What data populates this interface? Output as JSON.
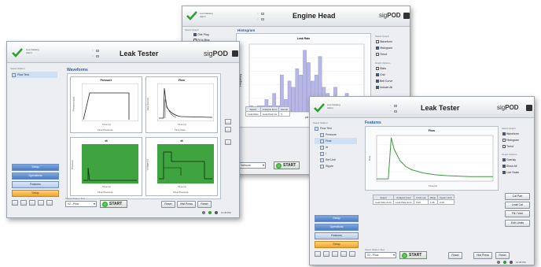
{
  "colors": {
    "accent_blue": "#2a5fa6",
    "nav_blue": "#4b7cc4",
    "nav_orange": "#f0a52a",
    "plot_green": "#3fa33f",
    "bar_lavender": "#b7b7e6",
    "curve_green": "#3c9a3c"
  },
  "windows": {
    "engine": {
      "status_line1": "Low Datalog",
      "status_line2": "Alarm",
      "title": "Engine Head",
      "brand_prefix": "sig",
      "brand_suffix": "POD",
      "panel_label": "Histogram",
      "select_label": "Select Graph",
      "option_one": "One Plug",
      "option_two": "Fit to Bins",
      "chart_title": "Leak Rate",
      "y_label": "Frequency",
      "x_label": "psi",
      "graph_options_label": "Select Graph",
      "graph_opts": [
        "Waveform",
        "Histogram",
        "Trend"
      ],
      "more_options_label": "Graph Options",
      "more_opts": [
        "Stats",
        "Grid",
        "Bell Curve",
        "Include All"
      ],
      "table_headers": [
        "Select",
        "Analysis Func",
        "Result"
      ],
      "table_row": [
        "Leak Rate",
        "Leak Data Ca",
        "0"
      ],
      "network_value": "6 - Network",
      "start_label": "START"
    },
    "leak1": {
      "status_line1": "Low Datalog",
      "status_line2": "Alarm",
      "title": "Leak Tester",
      "brand_prefix": "sig",
      "brand_suffix": "POD",
      "select_station": "Select Station",
      "tree_item": "Flow Test",
      "panel_label": "Waveforms",
      "charts": [
        {
          "title": "Pressure",
          "y_label": "Pressure (psi)",
          "x_label": "Time (s)",
          "caption": "Time Pressure"
        },
        {
          "title": "Flow",
          "y_label": "Flow (sccm)",
          "x_label": "Time (s)",
          "caption": "Time Flow"
        },
        {
          "title": "dt",
          "y_label": "Pressure",
          "x_label": "Time (s)",
          "caption": "Time Pressure"
        },
        {
          "title": "dt",
          "y_label": "Voltage (V)",
          "x_label": "Time (s)",
          "caption": "Time Pressure"
        }
      ],
      "nav": [
        "Setup",
        "Operations",
        "Features",
        "Setup"
      ],
      "station_label": "Select Station Test",
      "station_value": "02 - Flow",
      "start_label": "START",
      "bottom_buttons": [
        "Reset",
        "Hist Press",
        "Reset"
      ],
      "clock": "11:35 PM"
    },
    "leak2": {
      "status_line1": "Low Datalog",
      "status_line2": "Alarm",
      "title": "Leak Tester",
      "brand_prefix": "sig",
      "brand_suffix": "POD",
      "select_station": "Select Station",
      "tree": [
        "Flow Test",
        "Pressure",
        "Flow",
        "dt",
        "I",
        "Ref Unit",
        "Ripple"
      ],
      "panel_label": "Features",
      "chart_title": "Flow",
      "y_label": "Flow",
      "x_label": "Time (s)",
      "graph_options_label": "Select Graph",
      "graph_opts": [
        "Waveform",
        "Histogram",
        "Trend"
      ],
      "more_options_label": "Graph Options",
      "more_opts": [
        "Overlay",
        "Show All",
        "Live Scale"
      ],
      "side_buttons": [
        "Cal Part",
        "Leak Cal",
        "Fill / Vent",
        "Edit Limits"
      ],
      "table_headers": [
        "Select",
        "Analysis Func",
        "Limit Low",
        "Value",
        "Upper Limit"
      ],
      "table_row": [
        "Leak Rate Accu",
        "Leak Rate Accu",
        "0.00",
        "1.96",
        "2.00"
      ],
      "nav": [
        "Setup",
        "Operations",
        "Features",
        "Setup"
      ],
      "station_label": "Select Station Test",
      "station_value": "02 - Flow",
      "start_label": "START",
      "bottom_buttons": [
        "Reset",
        "Hist Press",
        "Reset"
      ],
      "clock": "11:35 PM"
    }
  },
  "chart_data": [
    {
      "type": "bar",
      "title": "Leak Rate",
      "xlabel": "psi",
      "ylabel": "Frequency",
      "values": [
        1,
        0,
        1,
        1,
        2,
        1,
        3,
        1,
        6,
        2,
        5,
        4,
        7,
        6,
        10,
        8,
        5,
        6,
        9,
        4,
        3,
        2,
        4,
        2,
        1,
        3,
        1,
        1,
        0,
        1
      ],
      "ylim": [
        0,
        11
      ]
    },
    {
      "type": "line",
      "title": "Flow",
      "xlabel": "Time (s)",
      "ylabel": "Flow",
      "x": [
        0,
        1,
        2,
        2.5,
        3,
        4,
        5,
        6,
        8,
        10,
        12,
        14,
        16,
        18,
        20
      ],
      "values": [
        0.05,
        0.05,
        0.05,
        0.95,
        0.7,
        0.45,
        0.32,
        0.25,
        0.18,
        0.14,
        0.12,
        0.11,
        0.1,
        0.1,
        0.1
      ],
      "ylim": [
        0,
        1
      ]
    }
  ]
}
